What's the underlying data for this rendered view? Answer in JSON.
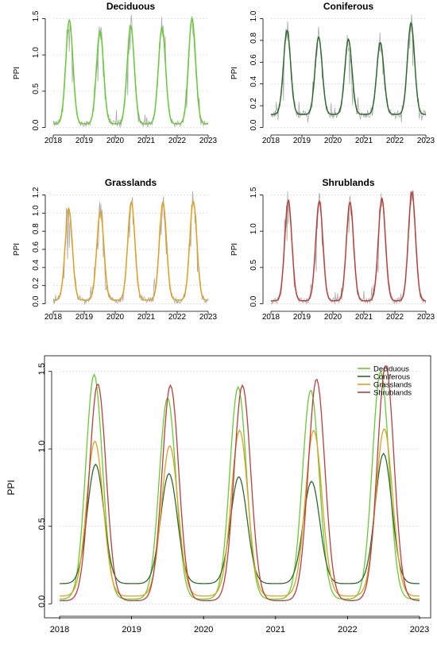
{
  "chart_data": [
    {
      "type": "line",
      "title": "Deciduous",
      "ylabel": "PPI",
      "xlim": [
        2018,
        2023
      ],
      "ylim": [
        0,
        1.5
      ],
      "x_ticks": [
        "2018",
        "2019",
        "2020",
        "2021",
        "2022",
        "2023"
      ],
      "y_ticks": [
        "0.0",
        "0.5",
        "1.0",
        "1.5"
      ],
      "color": "#66cc33",
      "raw_color": "#aaaaaa",
      "baseline": 0.05,
      "peaks": [
        {
          "date": 2018.52,
          "value": 1.48
        },
        {
          "date": 2019.51,
          "value": 1.33
        },
        {
          "date": 2020.5,
          "value": 1.4
        },
        {
          "date": 2021.51,
          "value": 1.38
        },
        {
          "date": 2022.48,
          "value": 1.5
        }
      ]
    },
    {
      "type": "line",
      "title": "Coniferous",
      "ylabel": "PPI",
      "xlim": [
        2018,
        2023
      ],
      "ylim": [
        0,
        1.0
      ],
      "x_ticks": [
        "2018",
        "2019",
        "2020",
        "2021",
        "2022",
        "2023"
      ],
      "y_ticks": [
        "0.0",
        "0.2",
        "0.4",
        "0.6",
        "0.8",
        "1.0"
      ],
      "color": "#2e6b2e",
      "raw_color": "#aaaaaa",
      "baseline": 0.12,
      "peaks": [
        {
          "date": 2018.52,
          "value": 0.89
        },
        {
          "date": 2019.54,
          "value": 0.83
        },
        {
          "date": 2020.5,
          "value": 0.81
        },
        {
          "date": 2021.53,
          "value": 0.78
        },
        {
          "date": 2022.52,
          "value": 0.96
        }
      ]
    },
    {
      "type": "line",
      "title": "Grasslands",
      "ylabel": "PPI",
      "xlim": [
        2018,
        2023
      ],
      "ylim": [
        0,
        1.2
      ],
      "x_ticks": [
        "2018",
        "2019",
        "2020",
        "2021",
        "2022",
        "2023"
      ],
      "y_ticks": [
        "0.0",
        "0.2",
        "0.4",
        "0.6",
        "0.8",
        "1.0",
        "1.2"
      ],
      "color": "#e0a020",
      "raw_color": "#aaaaaa",
      "baseline": 0.04,
      "peaks": [
        {
          "date": 2018.5,
          "value": 1.05
        },
        {
          "date": 2019.52,
          "value": 1.02
        },
        {
          "date": 2020.52,
          "value": 1.12
        },
        {
          "date": 2021.54,
          "value": 1.12
        },
        {
          "date": 2022.52,
          "value": 1.13
        }
      ]
    },
    {
      "type": "line",
      "title": "Shrublands",
      "ylabel": "PPI",
      "xlim": [
        2018,
        2023
      ],
      "ylim": [
        0,
        1.5
      ],
      "x_ticks": [
        "2018",
        "2019",
        "2020",
        "2021",
        "2022",
        "2023"
      ],
      "y_ticks": [
        "0.0",
        "0.5",
        "1.0",
        "1.5"
      ],
      "color": "#b8403a",
      "raw_color": "#aaaaaa",
      "baseline": 0.04,
      "peaks": [
        {
          "date": 2018.56,
          "value": 1.42
        },
        {
          "date": 2019.56,
          "value": 1.41
        },
        {
          "date": 2020.55,
          "value": 1.4
        },
        {
          "date": 2021.58,
          "value": 1.45
        },
        {
          "date": 2022.55,
          "value": 1.54
        }
      ]
    },
    {
      "type": "line",
      "ylabel": "PPI",
      "xlim": [
        2018,
        2023
      ],
      "ylim": [
        0,
        1.5
      ],
      "x_ticks": [
        "2018",
        "2019",
        "2020",
        "2021",
        "2022",
        "2023"
      ],
      "y_ticks": [
        "0.0",
        "0.5",
        "1.0",
        "1.5"
      ],
      "legend": "top-right",
      "series": [
        {
          "name": "Deciduous",
          "color": "#66cc33",
          "baseline": 0.03,
          "peaks": [
            {
              "date": 2018.48,
              "value": 1.48
            },
            {
              "date": 2019.5,
              "value": 1.33
            },
            {
              "date": 2020.48,
              "value": 1.4
            },
            {
              "date": 2021.49,
              "value": 1.38
            },
            {
              "date": 2022.46,
              "value": 1.5
            }
          ]
        },
        {
          "name": "Coniferous",
          "color": "#2e6b2e",
          "baseline": 0.13,
          "peaks": [
            {
              "date": 2018.5,
              "value": 0.9
            },
            {
              "date": 2019.52,
              "value": 0.84
            },
            {
              "date": 2020.49,
              "value": 0.82
            },
            {
              "date": 2021.5,
              "value": 0.79
            },
            {
              "date": 2022.5,
              "value": 0.97
            }
          ]
        },
        {
          "name": "Grasslands",
          "color": "#e0a020",
          "baseline": 0.05,
          "peaks": [
            {
              "date": 2018.49,
              "value": 1.05
            },
            {
              "date": 2019.53,
              "value": 1.02
            },
            {
              "date": 2020.5,
              "value": 1.12
            },
            {
              "date": 2021.53,
              "value": 1.12
            },
            {
              "date": 2022.51,
              "value": 1.13
            }
          ]
        },
        {
          "name": "Shrublands",
          "color": "#b8403a",
          "baseline": 0.02,
          "peaks": [
            {
              "date": 2018.53,
              "value": 1.42
            },
            {
              "date": 2019.54,
              "value": 1.41
            },
            {
              "date": 2020.54,
              "value": 1.41
            },
            {
              "date": 2021.57,
              "value": 1.45
            },
            {
              "date": 2022.53,
              "value": 1.54
            }
          ]
        }
      ]
    }
  ]
}
